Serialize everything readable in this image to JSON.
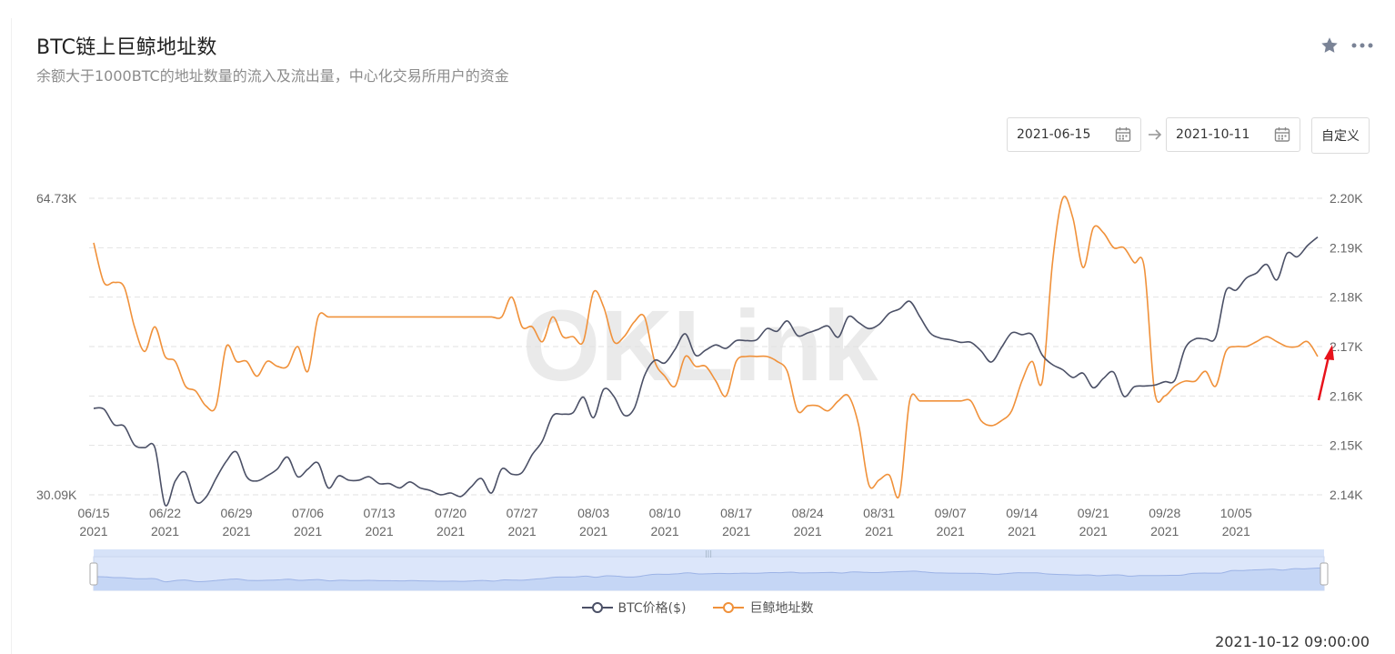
{
  "header": {
    "title": "BTC链上巨鲸地址数",
    "subtitle": "余额大于1000BTC的地址数量的流入及流出量，中心化交易所用户的资金",
    "star_icon": "star-icon",
    "more_icon": "more-dots-icon"
  },
  "date_range": {
    "start": "2021-06-15",
    "end": "2021-10-11",
    "calendar_icon": "calendar-icon",
    "arrow_icon": "arrow-right-icon",
    "custom_label": "自定义"
  },
  "legend": {
    "btc_label": "BTC价格($)",
    "whale_label": "巨鲸地址数"
  },
  "watermark": "OKLink",
  "timestamp": "2021-10-12 09:00:00",
  "colors": {
    "btc_line": "#4b5066",
    "whale_line": "#f0913a",
    "grid": "#e2e2e2",
    "axis_text": "#666666",
    "annotation_arrow": "#e8121b",
    "slider_fill": "#dce6fa",
    "slider_line": "#9cb3e6"
  },
  "chart_data": {
    "type": "line",
    "x_ticks": [
      {
        "date": "06/15",
        "year": "2021"
      },
      {
        "date": "06/22",
        "year": "2021"
      },
      {
        "date": "06/29",
        "year": "2021"
      },
      {
        "date": "07/06",
        "year": "2021"
      },
      {
        "date": "07/13",
        "year": "2021"
      },
      {
        "date": "07/20",
        "year": "2021"
      },
      {
        "date": "07/27",
        "year": "2021"
      },
      {
        "date": "08/03",
        "year": "2021"
      },
      {
        "date": "08/10",
        "year": "2021"
      },
      {
        "date": "08/17",
        "year": "2021"
      },
      {
        "date": "08/24",
        "year": "2021"
      },
      {
        "date": "08/31",
        "year": "2021"
      },
      {
        "date": "09/07",
        "year": "2021"
      },
      {
        "date": "09/14",
        "year": "2021"
      },
      {
        "date": "09/21",
        "year": "2021"
      },
      {
        "date": "09/28",
        "year": "2021"
      },
      {
        "date": "10/05",
        "year": "2021"
      }
    ],
    "y_left": {
      "max_label": "64.73K",
      "min_label": "30.09K",
      "min": 30090,
      "max": 64730
    },
    "y_right": {
      "ticks": [
        "2.20K",
        "2.19K",
        "2.18K",
        "2.17K",
        "2.16K",
        "2.15K",
        "2.14K"
      ],
      "min": 2140,
      "max": 2200
    },
    "grid": true,
    "legend_position": "bottom",
    "series": [
      {
        "name": "BTC价格($)",
        "axis": "left",
        "days": [
          0,
          1,
          2,
          3,
          4,
          5,
          6,
          7,
          8,
          9,
          10,
          11,
          12,
          13,
          14,
          15,
          16,
          17,
          18,
          19,
          20,
          21,
          22,
          23,
          24,
          25,
          26,
          27,
          28,
          29,
          30,
          31,
          32,
          33,
          34,
          35,
          36,
          37,
          38,
          39,
          40,
          41,
          42,
          43,
          44,
          45,
          46,
          47,
          48,
          49,
          50,
          51,
          52,
          53,
          54,
          55,
          56,
          57,
          58,
          59,
          60,
          61,
          62,
          63,
          64,
          65,
          66,
          67,
          68,
          69,
          70,
          71,
          72,
          73,
          74,
          75,
          76,
          77,
          78,
          79,
          80,
          81,
          82,
          83,
          84,
          85,
          86,
          87,
          88,
          89,
          90,
          91,
          92,
          93,
          94,
          95,
          96,
          97,
          98,
          99,
          100,
          101,
          102,
          103,
          104,
          105,
          106,
          107,
          108,
          109,
          110,
          111,
          112,
          113,
          114,
          115,
          116,
          117,
          118,
          119,
          120
        ],
        "values": [
          40200,
          40100,
          38300,
          38100,
          35900,
          35600,
          35600,
          28900,
          31700,
          32700,
          29300,
          29800,
          32000,
          34000,
          35100,
          32200,
          31700,
          32300,
          33100,
          34500,
          32200,
          33100,
          33800,
          30900,
          32300,
          31800,
          31800,
          32200,
          31400,
          31400,
          30900,
          31600,
          30900,
          30600,
          30100,
          30300,
          29900,
          31000,
          32000,
          30300,
          33100,
          32500,
          32700,
          34800,
          36400,
          39300,
          39500,
          39700,
          41500,
          39100,
          42400,
          41600,
          39400,
          40200,
          44000,
          45800,
          45500,
          47100,
          48900,
          46400,
          47000,
          47600,
          47200,
          48100,
          48100,
          48200,
          49500,
          49200,
          50400,
          48700,
          49000,
          49400,
          49800,
          48500,
          50900,
          50200,
          49500,
          50000,
          51300,
          51800,
          52700,
          50900,
          49000,
          48400,
          48200,
          47900,
          47900,
          46900,
          45600,
          47300,
          49000,
          48800,
          48800,
          46400,
          45300,
          44700,
          43800,
          44300,
          42600,
          43700,
          44400,
          41600,
          42700,
          42800,
          42900,
          43300,
          43500,
          47200,
          48300,
          48300,
          48500,
          53900,
          54000,
          55400,
          56000,
          57000,
          55200,
          58300,
          57900,
          59200,
          60200
        ]
      },
      {
        "name": "巨鲸地址数",
        "axis": "right",
        "days": [
          0,
          1,
          2,
          3,
          4,
          5,
          6,
          7,
          8,
          9,
          10,
          11,
          12,
          13,
          14,
          15,
          16,
          17,
          18,
          19,
          20,
          21,
          22,
          23,
          24,
          25,
          26,
          27,
          28,
          29,
          30,
          31,
          32,
          33,
          34,
          35,
          36,
          37,
          38,
          39,
          40,
          41,
          42,
          43,
          44,
          45,
          46,
          47,
          48,
          49,
          50,
          51,
          52,
          53,
          54,
          55,
          56,
          57,
          58,
          59,
          60,
          61,
          62,
          63,
          64,
          65,
          66,
          67,
          68,
          69,
          70,
          71,
          72,
          73,
          74,
          75,
          76,
          77,
          78,
          79,
          80,
          81,
          82,
          83,
          84,
          85,
          86,
          87,
          88,
          89,
          90,
          91,
          92,
          93,
          94,
          95,
          96,
          97,
          98,
          99,
          100,
          101,
          102,
          103,
          104,
          105,
          106,
          107,
          108,
          109,
          110,
          111,
          112,
          113,
          114,
          115,
          116,
          117,
          118,
          119,
          120
        ],
        "values": [
          2191,
          2183,
          2183,
          2182,
          2174,
          2169,
          2174,
          2168,
          2167,
          2162,
          2161,
          2158,
          2158,
          2170,
          2167,
          2167,
          2164,
          2167,
          2166,
          2166,
          2170,
          2165,
          2176,
          2176,
          2176,
          2176,
          2176,
          2176,
          2176,
          2176,
          2176,
          2176,
          2176,
          2176,
          2176,
          2176,
          2176,
          2176,
          2176,
          2176,
          2176,
          2180,
          2174,
          2174,
          2171,
          2176,
          2172,
          2172,
          2171,
          2181,
          2178,
          2171,
          2172,
          2175,
          2176,
          2167,
          2164,
          2162,
          2168,
          2166,
          2166,
          2163,
          2160,
          2167,
          2168,
          2168,
          2168,
          2167,
          2165,
          2157,
          2158,
          2158,
          2157,
          2159,
          2160,
          2154,
          2142,
          2143,
          2144,
          2140,
          2159,
          2159,
          2159,
          2159,
          2159,
          2159,
          2159,
          2155,
          2154,
          2155,
          2157,
          2163,
          2167,
          2163,
          2187,
          2200,
          2196,
          2186,
          2194,
          2193,
          2190,
          2190,
          2187,
          2186,
          2161,
          2160,
          2162,
          2163,
          2163,
          2165,
          2162,
          2169,
          2170,
          2170,
          2171,
          2172,
          2171,
          2170,
          2170,
          2171,
          2168
        ]
      }
    ],
    "annotations": [
      {
        "type": "arrow",
        "color": "#e8121b",
        "pointing_to": "latest value near 2.17K on right axis"
      }
    ]
  }
}
